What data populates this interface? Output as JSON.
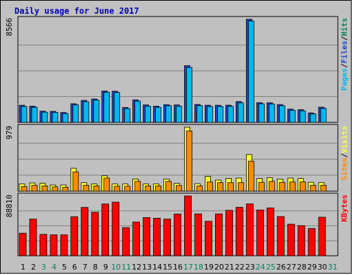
{
  "chart_title": "Daily usage for June 2017",
  "colors": {
    "pages": "#00b7ef",
    "files": "#1a47c9",
    "hits": "#008060",
    "visits": "#ffff33",
    "sites": "#ff8c00",
    "kbytes": "#ff0000",
    "weekend_label": "#008060",
    "weekday_label": "#000000"
  },
  "chart_data": {
    "type": "bar",
    "title": "Daily usage for June 2017",
    "categories": [
      "1",
      "2",
      "3",
      "4",
      "5",
      "6",
      "7",
      "8",
      "9",
      "10",
      "11",
      "12",
      "13",
      "14",
      "15",
      "16",
      "17",
      "18",
      "19",
      "20",
      "21",
      "22",
      "23",
      "24",
      "25",
      "26",
      "27",
      "28",
      "29",
      "30",
      "31"
    ],
    "weekend_days": [
      3,
      4,
      10,
      11,
      17,
      18,
      24,
      25,
      31
    ],
    "panels": [
      {
        "name": "hits-panel",
        "max_label": "8566",
        "ylim": [
          0,
          8566
        ],
        "legend": [
          {
            "text": "Pages",
            "color": "#00b7ef"
          },
          {
            "text": "Files",
            "color": "#1a47c9"
          },
          {
            "text": "Hits",
            "color": "#008060"
          }
        ],
        "separator": " / ",
        "series": [
          {
            "name": "Hits",
            "values": [
              1420,
              1350,
              930,
              920,
              820,
              1550,
              1830,
              1940,
              2610,
              2590,
              1240,
              1870,
              1450,
              1350,
              1470,
              1450,
              4710,
              1490,
              1420,
              1420,
              1430,
              1730,
              8566,
              1640,
              1630,
              1480,
              1100,
              1050,
              790,
              1260,
              0
            ]
          },
          {
            "name": "Pages",
            "values": [
              1320,
              1250,
              850,
              830,
              730,
              1450,
              1720,
              1850,
              2500,
              2480,
              1140,
              1770,
              1350,
              1250,
              1380,
              1350,
              4560,
              1390,
              1320,
              1320,
              1330,
              1620,
              8420,
              1540,
              1530,
              1380,
              1000,
              960,
              700,
              1160,
              0
            ]
          }
        ]
      },
      {
        "name": "visits-panel",
        "max_label": "979",
        "ylim": [
          0,
          979
        ],
        "legend": [
          {
            "text": "Sites",
            "color": "#ff8c00"
          },
          {
            "text": "Visits",
            "color": "#ffff33"
          }
        ],
        "separator": " / ",
        "series": [
          {
            "name": "Visits",
            "values": [
              110,
              125,
              120,
              95,
              95,
              350,
              130,
              110,
              235,
              110,
              110,
              185,
              110,
              110,
              185,
              120,
              979,
              115,
              225,
              170,
              195,
              200,
              560,
              195,
              205,
              185,
              200,
              195,
              135,
              130,
              0
            ]
          },
          {
            "name": "Sites",
            "values": [
              70,
              90,
              80,
              65,
              60,
              295,
              90,
              80,
              200,
              75,
              75,
              150,
              80,
              80,
              150,
              85,
              920,
              80,
              140,
              130,
              130,
              130,
              460,
              135,
              150,
              135,
              140,
              140,
              90,
              90,
              0
            ]
          }
        ]
      },
      {
        "name": "kbytes-panel",
        "max_label": "88810",
        "ylim": [
          0,
          88810
        ],
        "legend": [
          {
            "text": "KBytes",
            "color": "#ff0000"
          }
        ],
        "separator": "",
        "series": [
          {
            "name": "KBytes",
            "values": [
              33500,
              54500,
              31700,
              31000,
              31000,
              58000,
              71800,
              64500,
              76900,
              79500,
              41700,
              50000,
              56800,
              55700,
              54500,
              62000,
              88810,
              62200,
              51100,
              62200,
              67500,
              72000,
              77000,
              68000,
              71000,
              58200,
              46900,
              44700,
              40500,
              57300,
              0
            ]
          }
        ]
      }
    ]
  }
}
